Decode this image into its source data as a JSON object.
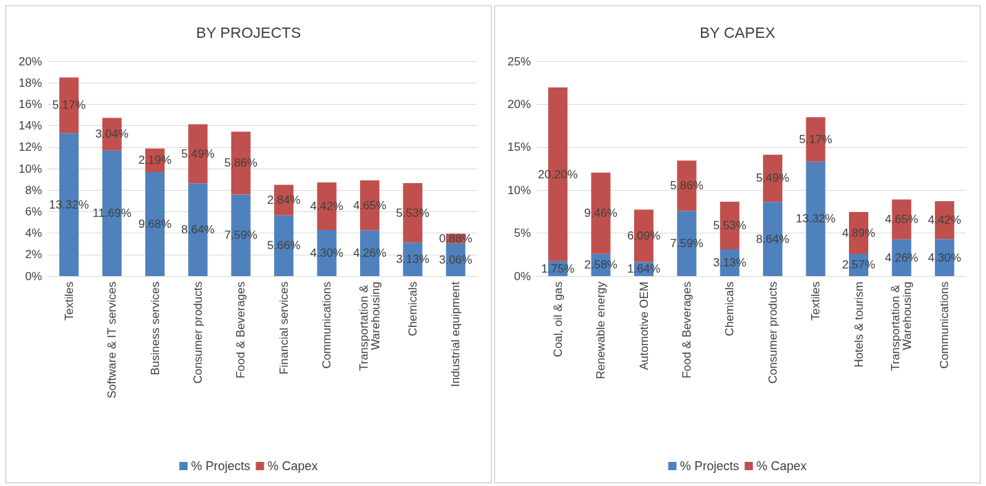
{
  "chart_data": [
    {
      "type": "bar",
      "title": "BY PROJECTS",
      "stacked": true,
      "categories": [
        "Textiles",
        "Software & IT services",
        "Business services",
        "Consumer products",
        "Food & Beverages",
        "Financial services",
        "Communications",
        "Transportation & Warehousing",
        "Chemicals",
        "Industrial equipment"
      ],
      "series": [
        {
          "name": "% Projects",
          "color": "#4f81bd",
          "values": [
            13.32,
            11.69,
            9.68,
            8.64,
            7.59,
            5.66,
            4.3,
            4.26,
            3.13,
            3.06
          ],
          "value_labels": [
            "13.32%",
            "11.69%",
            "9.68%",
            "8.64%",
            "7.59%",
            "5.66%",
            "4.30%",
            "4.26%",
            "3.13%",
            "3.06%"
          ]
        },
        {
          "name": "% Capex",
          "color": "#c0504d",
          "values": [
            5.17,
            3.04,
            2.19,
            5.49,
            5.86,
            2.84,
            4.42,
            4.65,
            5.53,
            0.88
          ],
          "value_labels": [
            "5.17%",
            "3.04%",
            "2.19%",
            "5.49%",
            "5.86%",
            "2.84%",
            "4.42%",
            "4.65%",
            "5.53%",
            "0.88%"
          ]
        }
      ],
      "ylim": [
        0,
        20
      ],
      "yticks": [
        {
          "value": 0,
          "label": "0%"
        },
        {
          "value": 2,
          "label": "2%"
        },
        {
          "value": 4,
          "label": "4%"
        },
        {
          "value": 6,
          "label": "6%"
        },
        {
          "value": 8,
          "label": "8%"
        },
        {
          "value": 10,
          "label": "10%"
        },
        {
          "value": 12,
          "label": "12%"
        },
        {
          "value": 14,
          "label": "14%"
        },
        {
          "value": 16,
          "label": "16%"
        },
        {
          "value": 18,
          "label": "18%"
        },
        {
          "value": 20,
          "label": "20%"
        }
      ],
      "grid": "y",
      "legend": "bottom"
    },
    {
      "type": "bar",
      "title": "BY CAPEX",
      "stacked": true,
      "categories": [
        "Coal, oil & gas",
        "Renewable energy",
        "Automotive OEM",
        "Food & Beverages",
        "Chemicals",
        "Consumer products",
        "Textiles",
        "Hotels & tourism",
        "Transportation & Warehousing",
        "Communications"
      ],
      "series": [
        {
          "name": "% Projects",
          "color": "#4f81bd",
          "values": [
            1.75,
            2.58,
            1.64,
            7.59,
            3.13,
            8.64,
            13.32,
            2.57,
            4.26,
            4.3
          ],
          "value_labels": [
            "1.75%",
            "2.58%",
            "1.64%",
            "7.59%",
            "3.13%",
            "8.64%",
            "13.32%",
            "2.57%",
            "4.26%",
            "4.30%"
          ]
        },
        {
          "name": "% Capex",
          "color": "#c0504d",
          "values": [
            20.2,
            9.46,
            6.09,
            5.86,
            5.53,
            5.49,
            5.17,
            4.89,
            4.65,
            4.42
          ],
          "value_labels": [
            "20.20%",
            "9.46%",
            "6.09%",
            "5.86%",
            "5.53%",
            "5.49%",
            "5.17%",
            "4.89%",
            "4.65%",
            "4.42%"
          ]
        }
      ],
      "ylim": [
        0,
        25
      ],
      "yticks": [
        {
          "value": 0,
          "label": "0%"
        },
        {
          "value": 5,
          "label": "5%"
        },
        {
          "value": 10,
          "label": "10%"
        },
        {
          "value": 15,
          "label": "15%"
        },
        {
          "value": 20,
          "label": "20%"
        },
        {
          "value": 25,
          "label": "25%"
        }
      ],
      "grid": "y",
      "legend": "bottom"
    }
  ]
}
